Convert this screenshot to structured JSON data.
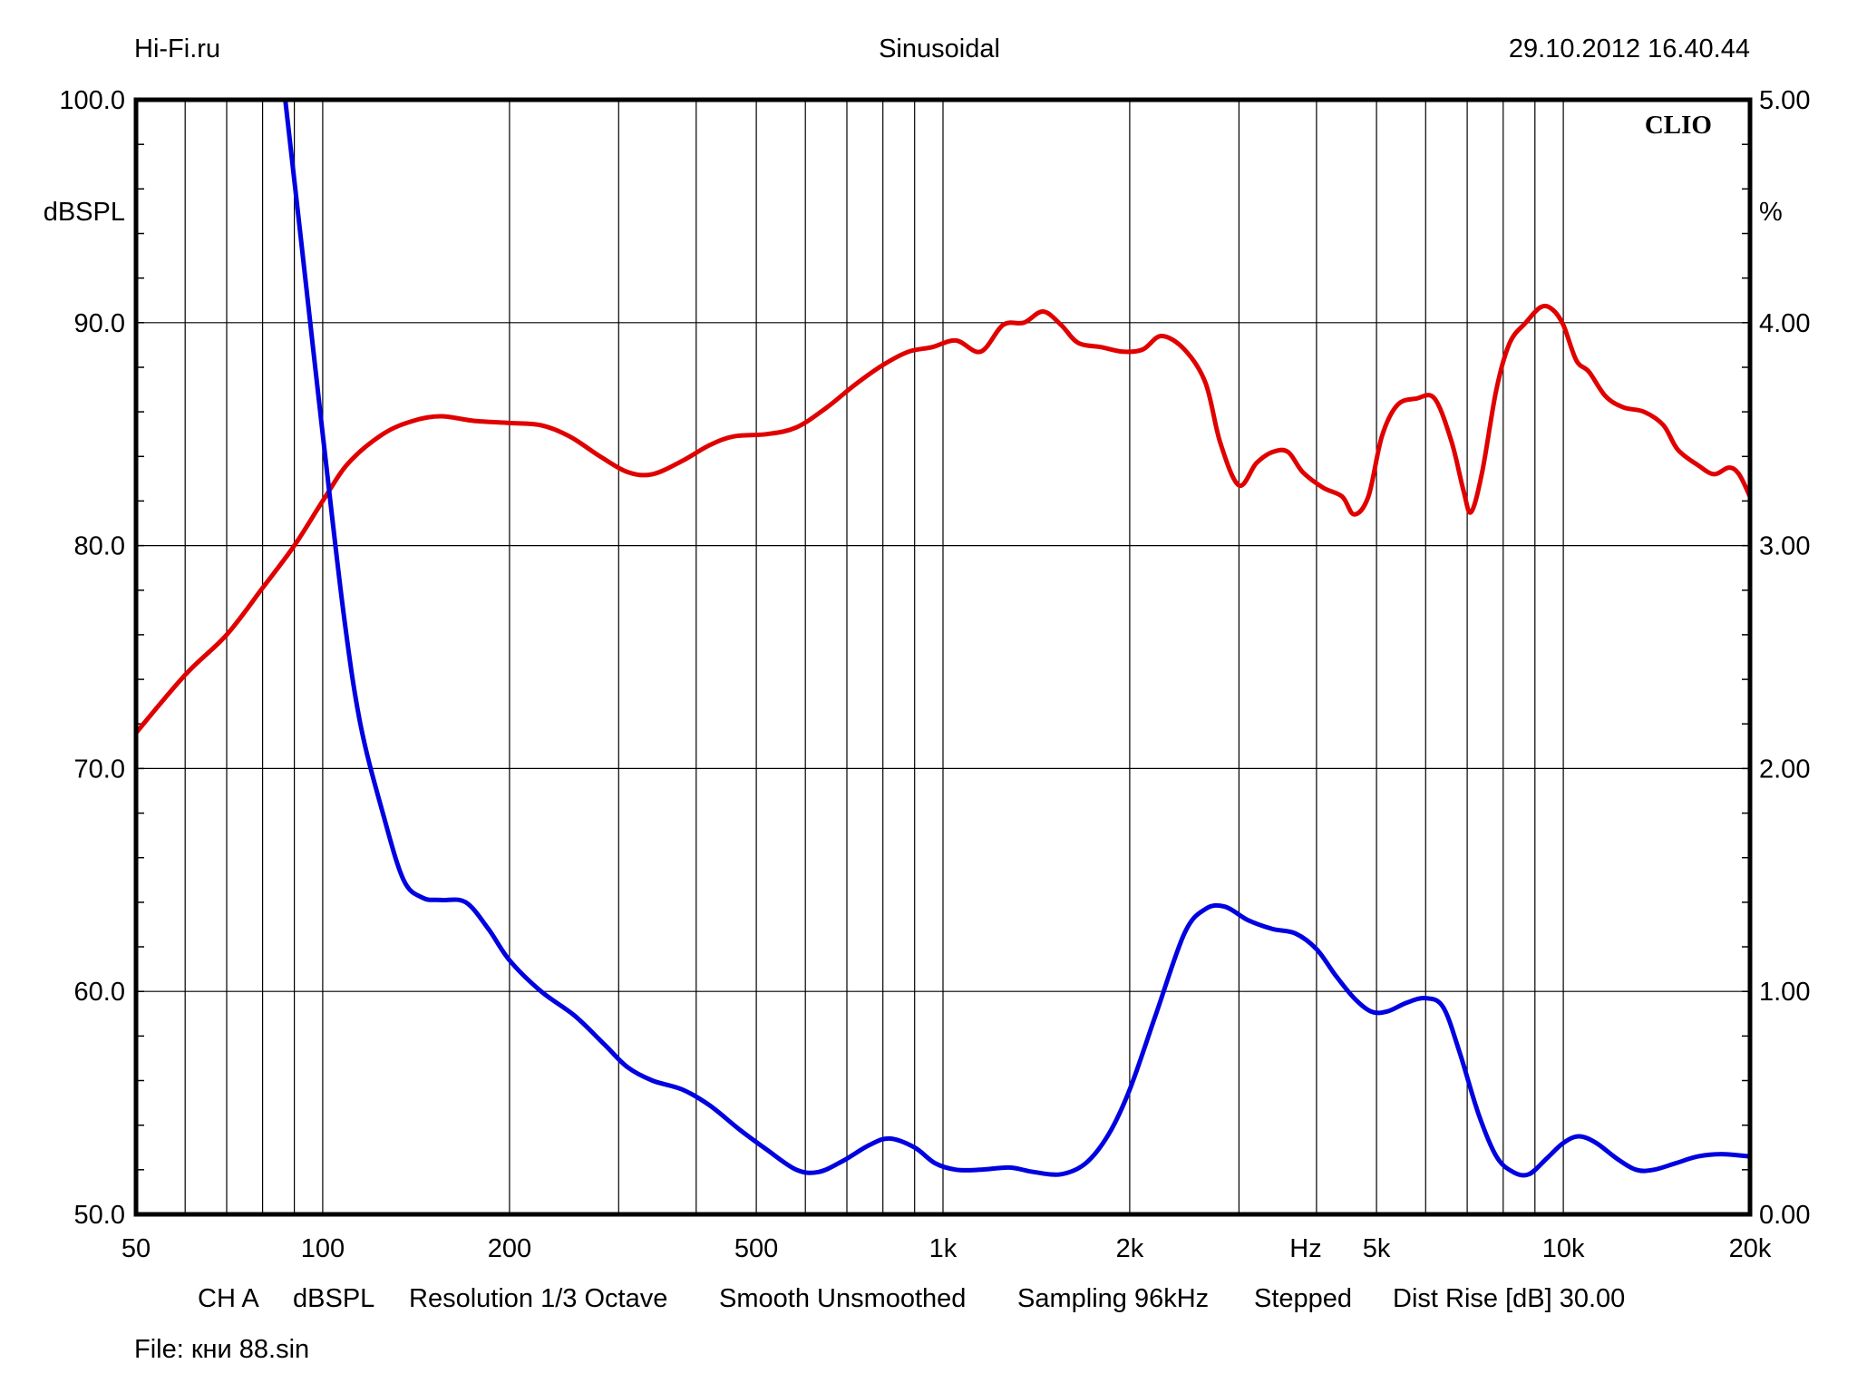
{
  "header": {
    "left": "Hi-Fi.ru",
    "center": "Sinusoidal",
    "right": "29.10.2012 16.40.44",
    "brand": "CLIO"
  },
  "footer": {
    "settings": [
      "CH A",
      "dBSPL",
      "Resolution 1/3 Octave",
      "Smooth Unsmoothed",
      "Sampling 96kHz",
      "Stepped",
      "Dist Rise [dB] 30.00"
    ],
    "file": "File: кни 88.sin"
  },
  "chart_data": {
    "type": "line",
    "title": "Sinusoidal",
    "xlabel": "Hz",
    "ylabel": "dBSPL",
    "y2label": "%",
    "x_scale": "log",
    "xlim": [
      50,
      20000
    ],
    "ylim": [
      50,
      100
    ],
    "y2lim": [
      0,
      5
    ],
    "grid": true,
    "x_tick_labels": [
      {
        "value": 50,
        "label": "50"
      },
      {
        "value": 100,
        "label": "100"
      },
      {
        "value": 200,
        "label": "200"
      },
      {
        "value": 500,
        "label": "500"
      },
      {
        "value": 1000,
        "label": "1k"
      },
      {
        "value": 2000,
        "label": "2k"
      },
      {
        "value": 5000,
        "label": "5k"
      },
      {
        "value": 10000,
        "label": "10k"
      },
      {
        "value": 20000,
        "label": "20k"
      }
    ],
    "x_grid": [
      60,
      70,
      80,
      90,
      100,
      200,
      300,
      400,
      500,
      600,
      700,
      800,
      900,
      1000,
      2000,
      3000,
      4000,
      5000,
      6000,
      7000,
      8000,
      9000,
      10000
    ],
    "y_tick_labels": [
      "50.0",
      "60.0",
      "70.0",
      "80.0",
      "90.0",
      "100.0"
    ],
    "y_ticks": [
      50,
      60,
      70,
      80,
      90,
      100
    ],
    "y2_tick_labels": [
      "0.00",
      "1.00",
      "2.00",
      "3.00",
      "4.00",
      "5.00"
    ],
    "y2_ticks": [
      0,
      1,
      2,
      3,
      4,
      5
    ],
    "series": [
      {
        "color": "#e00000",
        "axis": "left",
        "points": [
          [
            50,
            71.6
          ],
          [
            60,
            74.2
          ],
          [
            70,
            76.0
          ],
          [
            80,
            78.1
          ],
          [
            90,
            80.0
          ],
          [
            100,
            82.0
          ],
          [
            110,
            83.7
          ],
          [
            125,
            85.0
          ],
          [
            140,
            85.6
          ],
          [
            155,
            85.8
          ],
          [
            175,
            85.6
          ],
          [
            200,
            85.5
          ],
          [
            225,
            85.4
          ],
          [
            250,
            84.9
          ],
          [
            280,
            84.0
          ],
          [
            310,
            83.3
          ],
          [
            340,
            83.2
          ],
          [
            380,
            83.8
          ],
          [
            420,
            84.5
          ],
          [
            460,
            84.9
          ],
          [
            520,
            85.0
          ],
          [
            580,
            85.3
          ],
          [
            650,
            86.2
          ],
          [
            720,
            87.2
          ],
          [
            800,
            88.1
          ],
          [
            880,
            88.7
          ],
          [
            960,
            88.9
          ],
          [
            1050,
            89.2
          ],
          [
            1150,
            88.7
          ],
          [
            1250,
            89.9
          ],
          [
            1350,
            90.0
          ],
          [
            1450,
            90.5
          ],
          [
            1550,
            89.9
          ],
          [
            1650,
            89.1
          ],
          [
            1800,
            88.9
          ],
          [
            1950,
            88.7
          ],
          [
            2100,
            88.8
          ],
          [
            2250,
            89.4
          ],
          [
            2450,
            88.8
          ],
          [
            2650,
            87.3
          ],
          [
            2800,
            84.6
          ],
          [
            3000,
            82.7
          ],
          [
            3200,
            83.7
          ],
          [
            3400,
            84.2
          ],
          [
            3600,
            84.2
          ],
          [
            3800,
            83.3
          ],
          [
            4100,
            82.6
          ],
          [
            4400,
            82.2
          ],
          [
            4600,
            81.4
          ],
          [
            4850,
            82.2
          ],
          [
            5100,
            84.9
          ],
          [
            5400,
            86.3
          ],
          [
            5800,
            86.6
          ],
          [
            6200,
            86.6
          ],
          [
            6600,
            84.7
          ],
          [
            6900,
            82.5
          ],
          [
            7100,
            81.5
          ],
          [
            7400,
            83.3
          ],
          [
            7800,
            87.0
          ],
          [
            8200,
            89.1
          ],
          [
            8700,
            90.0
          ],
          [
            9200,
            90.7
          ],
          [
            9600,
            90.6
          ],
          [
            10000,
            89.9
          ],
          [
            10500,
            88.3
          ],
          [
            11000,
            87.8
          ],
          [
            11700,
            86.7
          ],
          [
            12500,
            86.2
          ],
          [
            13500,
            86.0
          ],
          [
            14500,
            85.4
          ],
          [
            15300,
            84.3
          ],
          [
            16500,
            83.6
          ],
          [
            17500,
            83.2
          ],
          [
            18500,
            83.5
          ],
          [
            19200,
            83.2
          ],
          [
            20000,
            82.2
          ]
        ]
      },
      {
        "color": "#0000e0",
        "axis": "right",
        "points": [
          [
            87,
            5.0
          ],
          [
            92,
            4.4
          ],
          [
            100,
            3.5
          ],
          [
            108,
            2.7
          ],
          [
            115,
            2.2
          ],
          [
            125,
            1.8
          ],
          [
            135,
            1.5
          ],
          [
            145,
            1.42
          ],
          [
            155,
            1.41
          ],
          [
            170,
            1.4
          ],
          [
            185,
            1.28
          ],
          [
            200,
            1.14
          ],
          [
            225,
            1.0
          ],
          [
            255,
            0.89
          ],
          [
            285,
            0.76
          ],
          [
            310,
            0.66
          ],
          [
            340,
            0.6
          ],
          [
            380,
            0.56
          ],
          [
            420,
            0.49
          ],
          [
            470,
            0.38
          ],
          [
            520,
            0.29
          ],
          [
            580,
            0.2
          ],
          [
            630,
            0.19
          ],
          [
            690,
            0.24
          ],
          [
            760,
            0.31
          ],
          [
            820,
            0.34
          ],
          [
            900,
            0.3
          ],
          [
            970,
            0.23
          ],
          [
            1050,
            0.2
          ],
          [
            1150,
            0.2
          ],
          [
            1280,
            0.21
          ],
          [
            1400,
            0.19
          ],
          [
            1550,
            0.18
          ],
          [
            1700,
            0.23
          ],
          [
            1850,
            0.36
          ],
          [
            2000,
            0.56
          ],
          [
            2200,
            0.89
          ],
          [
            2450,
            1.26
          ],
          [
            2650,
            1.37
          ],
          [
            2850,
            1.38
          ],
          [
            3100,
            1.32
          ],
          [
            3400,
            1.28
          ],
          [
            3700,
            1.26
          ],
          [
            4000,
            1.19
          ],
          [
            4300,
            1.07
          ],
          [
            4600,
            0.97
          ],
          [
            4900,
            0.91
          ],
          [
            5200,
            0.91
          ],
          [
            5600,
            0.95
          ],
          [
            6000,
            0.97
          ],
          [
            6400,
            0.93
          ],
          [
            6800,
            0.73
          ],
          [
            7300,
            0.45
          ],
          [
            7800,
            0.26
          ],
          [
            8300,
            0.19
          ],
          [
            8800,
            0.18
          ],
          [
            9400,
            0.25
          ],
          [
            10000,
            0.32
          ],
          [
            10600,
            0.35
          ],
          [
            11300,
            0.32
          ],
          [
            12200,
            0.25
          ],
          [
            13100,
            0.2
          ],
          [
            14000,
            0.2
          ],
          [
            15200,
            0.23
          ],
          [
            16500,
            0.26
          ],
          [
            18000,
            0.27
          ],
          [
            20000,
            0.26
          ]
        ]
      }
    ]
  }
}
